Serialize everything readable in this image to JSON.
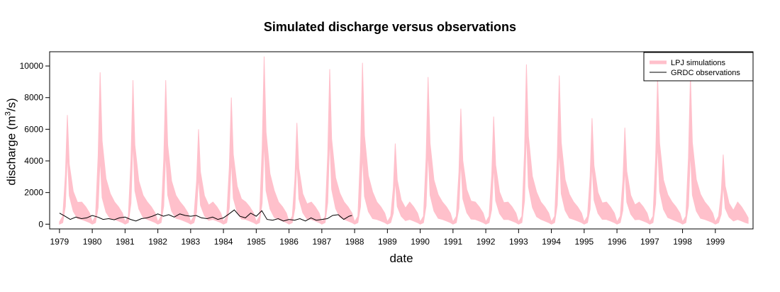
{
  "chart_data": {
    "type": "area",
    "title": "Simulated discharge versus observations",
    "xlabel": "date",
    "ylabel_prefix": "discharge (m",
    "ylabel_sup": "3",
    "ylabel_suffix": "/s)",
    "xlim": [
      1978.7,
      2000.15
    ],
    "ylim": [
      -300,
      10900
    ],
    "x_ticks": [
      1979,
      1980,
      1981,
      1982,
      1983,
      1984,
      1985,
      1986,
      1987,
      1988,
      1989,
      1990,
      1991,
      1992,
      1993,
      1994,
      1995,
      1996,
      1997,
      1998,
      1999
    ],
    "y_ticks": [
      0,
      2000,
      4000,
      6000,
      8000,
      10000
    ],
    "legend_position": "top-right",
    "grid": false,
    "series": [
      {
        "name": "LPJ simulations",
        "kind": "band",
        "color": "#ffc0cb",
        "annual_peaks": [
          {
            "year": 1979,
            "upper": 6900,
            "lower": 4500
          },
          {
            "year": 1980,
            "upper": 9600,
            "lower": 4200
          },
          {
            "year": 1981,
            "upper": 9100,
            "lower": 5300
          },
          {
            "year": 1982,
            "upper": 9100,
            "lower": 4600
          },
          {
            "year": 1983,
            "upper": 6000,
            "lower": 3000
          },
          {
            "year": 1984,
            "upper": 8000,
            "lower": 4100
          },
          {
            "year": 1985,
            "upper": 10600,
            "lower": 5300
          },
          {
            "year": 1986,
            "upper": 6400,
            "lower": 4000
          },
          {
            "year": 1987,
            "upper": 9800,
            "lower": 5500
          },
          {
            "year": 1988,
            "upper": 10200,
            "lower": 4400
          },
          {
            "year": 1989,
            "upper": 5100,
            "lower": 2800
          },
          {
            "year": 1990,
            "upper": 9300,
            "lower": 4600
          },
          {
            "year": 1991,
            "upper": 7300,
            "lower": 4000
          },
          {
            "year": 1992,
            "upper": 6800,
            "lower": 3700
          },
          {
            "year": 1993,
            "upper": 10100,
            "lower": 5900
          },
          {
            "year": 1994,
            "upper": 9400,
            "lower": 4800
          },
          {
            "year": 1995,
            "upper": 6700,
            "lower": 3800
          },
          {
            "year": 1996,
            "upper": 6100,
            "lower": 3500
          },
          {
            "year": 1997,
            "upper": 9300,
            "lower": 5200
          },
          {
            "year": 1998,
            "upper": 9400,
            "lower": 4600
          },
          {
            "year": 1999,
            "upper": 4400,
            "lower": 2500
          }
        ]
      },
      {
        "name": "GRDC observations",
        "kind": "line",
        "color": "#000000",
        "x": [
          1979.0,
          1979.17,
          1979.33,
          1979.5,
          1979.67,
          1979.83,
          1980.0,
          1980.17,
          1980.33,
          1980.5,
          1980.67,
          1980.83,
          1981.0,
          1981.17,
          1981.33,
          1981.5,
          1981.67,
          1981.83,
          1982.0,
          1982.17,
          1982.33,
          1982.5,
          1982.67,
          1982.83,
          1983.0,
          1983.17,
          1983.33,
          1983.5,
          1983.67,
          1983.83,
          1984.0,
          1984.17,
          1984.33,
          1984.5,
          1984.67,
          1984.83,
          1985.0,
          1985.17,
          1985.33,
          1985.5,
          1985.67,
          1985.83,
          1986.0,
          1986.17,
          1986.33,
          1986.5,
          1986.67,
          1986.83,
          1987.0,
          1987.17,
          1987.33,
          1987.5,
          1987.67,
          1987.83,
          1987.92
        ],
        "y": [
          700,
          500,
          300,
          450,
          350,
          400,
          550,
          450,
          300,
          350,
          280,
          400,
          450,
          300,
          200,
          350,
          400,
          500,
          650,
          500,
          600,
          450,
          650,
          550,
          500,
          550,
          400,
          350,
          450,
          300,
          400,
          650,
          900,
          500,
          400,
          700,
          500,
          850,
          300,
          250,
          350,
          200,
          300,
          250,
          350,
          200,
          400,
          250,
          300,
          350,
          550,
          600,
          300,
          500,
          550
        ]
      }
    ]
  }
}
